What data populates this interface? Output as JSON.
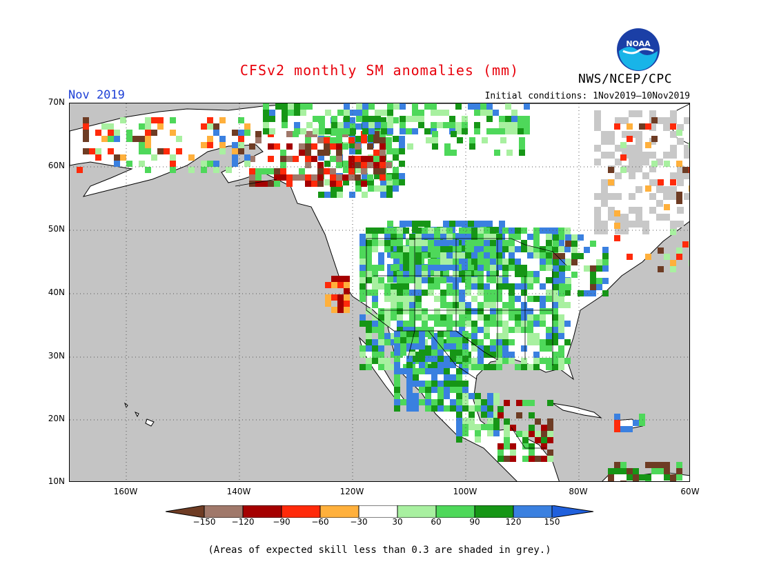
{
  "title": "CFSv2 monthly SM anomalies (mm)",
  "agency": "NWS/NCEP/CPC",
  "logo_text": "NOAA",
  "month_label": "Nov 2019",
  "initial_conditions": "Initial conditions: 1Nov2019—10Nov2019",
  "note": "(Areas of expected skill less than 0.3 are shaded in grey.)",
  "lat_labels": [
    "70N",
    "60N",
    "50N",
    "40N",
    "30N",
    "20N",
    "10N"
  ],
  "lon_labels": [
    "160W",
    "140W",
    "120W",
    "100W",
    "80W",
    "60W"
  ],
  "colorbar": {
    "labels": [
      "−150",
      "−120",
      "−90",
      "−60",
      "−30",
      "30",
      "60",
      "90",
      "120",
      "150"
    ],
    "colors": [
      "#6e3c24",
      "#a0786a",
      "#a50000",
      "#ff2a0a",
      "#ffb03c",
      "#ffffff",
      "#a8f0a0",
      "#4ed85a",
      "#169616",
      "#3a80e0",
      "#2060dc"
    ]
  },
  "colors": {
    "ocean": "#c4c4c4",
    "land": "#ffffff",
    "skill_grey": "#c8c8c8",
    "title_red": "#e8000b",
    "month_blue": "#1d3fd6"
  }
}
